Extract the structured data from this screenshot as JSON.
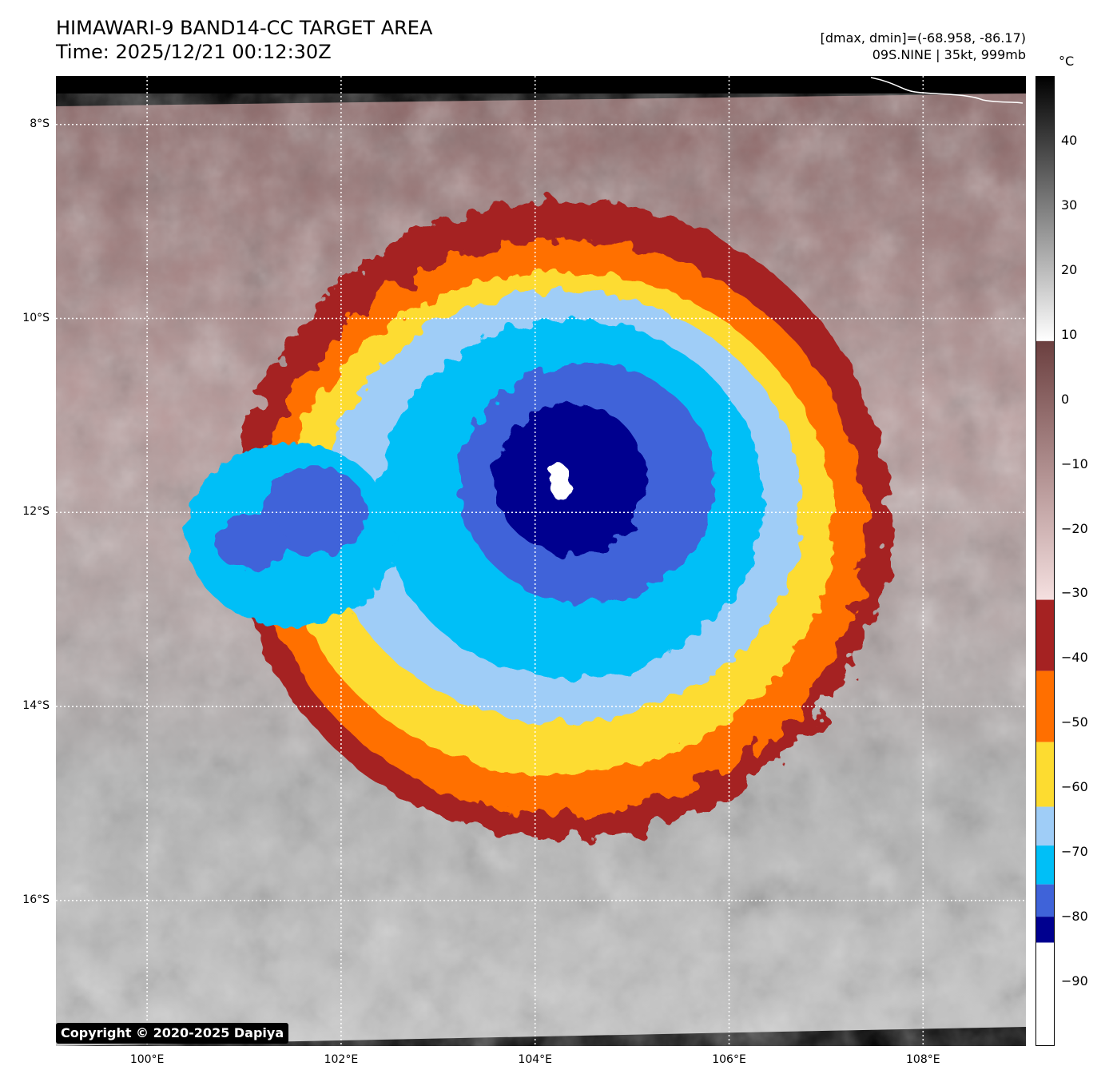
{
  "header": {
    "title_line1": "HIMAWARI-9 BAND14-CC TARGET AREA",
    "title_line2": "Time: 2025/12/21 00:12:30Z",
    "info_line1": "[dmax, dmin]=(-68.958, -86.17)",
    "info_line2": "09S.NINE | 35kt, 999mb"
  },
  "map": {
    "lat_ticks": [
      "8°S",
      "10°S",
      "12°S",
      "14°S",
      "16°S"
    ],
    "lon_ticks": [
      "100°E",
      "102°E",
      "104°E",
      "106°E",
      "108°E"
    ],
    "lat_values": [
      -8,
      -10,
      -12,
      -14,
      -16
    ],
    "lon_values": [
      100,
      102,
      104,
      106,
      108
    ],
    "extent": {
      "lon_min": 99.06,
      "lon_max": 109.06,
      "lat_max": -7.5,
      "lat_min": -17.5
    },
    "storm_center": {
      "lon": 104.2,
      "lat": -11.9
    },
    "copyright": "Copyright © 2020-2025 Dapiya"
  },
  "colorbar": {
    "unit": "°C",
    "ticks": [
      "40",
      "30",
      "20",
      "10",
      "0",
      "−10",
      "−20",
      "−30",
      "−40",
      "−50",
      "−60",
      "−70",
      "−80",
      "−90"
    ],
    "tick_values": [
      40,
      30,
      20,
      10,
      0,
      -10,
      -20,
      -30,
      -40,
      -50,
      -60,
      -70,
      -80,
      -90
    ],
    "range": [
      -100,
      50
    ],
    "colors": {
      "gray_top": "#000000",
      "gray_bottom": "#ffffff",
      "brown_top": "#6b3f3f",
      "pink_bottom": "#f5e0e0",
      "red": "#a52222",
      "orange": "#ff6f00",
      "yellow": "#fddc30",
      "light_blue": "#9fcdf7",
      "cyan": "#00bff7",
      "blue": "#3f63d9",
      "navy": "#00008f",
      "white": "#ffffff"
    }
  }
}
